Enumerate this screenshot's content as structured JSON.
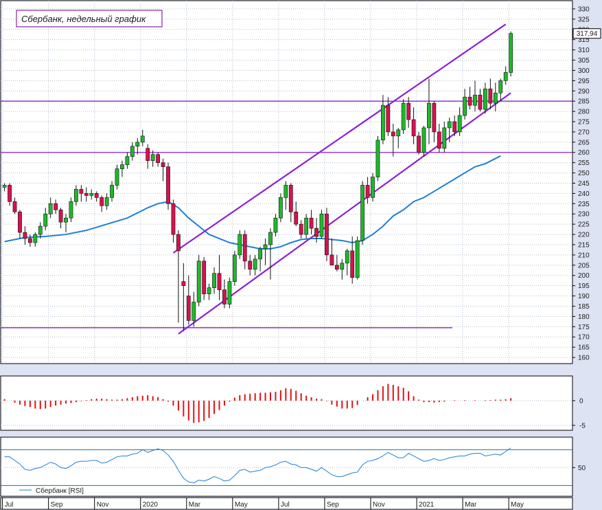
{
  "chart_data": {
    "type": "candlestick",
    "title": "Сбербанк, недельный график",
    "last_price_label": "317,94",
    "price_axis": {
      "ylim": [
        157,
        334
      ],
      "ticks": [
        160,
        165,
        170,
        175,
        180,
        185,
        190,
        195,
        200,
        205,
        210,
        215,
        220,
        225,
        230,
        235,
        240,
        245,
        250,
        255,
        260,
        265,
        270,
        275,
        280,
        285,
        290,
        295,
        300,
        305,
        310,
        315,
        320,
        325,
        330
      ]
    },
    "x_axis_labels": [
      "Jul",
      "Sep",
      "Nov",
      "2020",
      "Mar",
      "May",
      "Jul",
      "Sep",
      "Nov",
      "2021",
      "Mar",
      "May"
    ],
    "x_axis_label_weeks": [
      0,
      9,
      18,
      27,
      36,
      45,
      54,
      63,
      72,
      81,
      90,
      99
    ],
    "grid": true,
    "horizontal_lines": [
      285,
      260,
      174.5
    ],
    "candles": [
      [
        243,
        245,
        241,
        244
      ],
      [
        244,
        245,
        234,
        236
      ],
      [
        236,
        238,
        230,
        231
      ],
      [
        231,
        232,
        218,
        221
      ],
      [
        221,
        224,
        215,
        218
      ],
      [
        218,
        220,
        214,
        216
      ],
      [
        216,
        221,
        214,
        220
      ],
      [
        220,
        226,
        218,
        224
      ],
      [
        224,
        233,
        222,
        230
      ],
      [
        230,
        238,
        228,
        235
      ],
      [
        235,
        237,
        230,
        232
      ],
      [
        232,
        233,
        223,
        226
      ],
      [
        226,
        230,
        221,
        228
      ],
      [
        228,
        238,
        226,
        236
      ],
      [
        236,
        244,
        234,
        242
      ],
      [
        242,
        244,
        236,
        240
      ],
      [
        240,
        243,
        236,
        239
      ],
      [
        239,
        242,
        237,
        240
      ],
      [
        240,
        241,
        236,
        238
      ],
      [
        238,
        239,
        231,
        234
      ],
      [
        234,
        240,
        232,
        238
      ],
      [
        238,
        246,
        236,
        244
      ],
      [
        244,
        254,
        242,
        252
      ],
      [
        252,
        256,
        248,
        254
      ],
      [
        254,
        260,
        252,
        258
      ],
      [
        258,
        265,
        256,
        263
      ],
      [
        263,
        267,
        259,
        265
      ],
      [
        265,
        271,
        263,
        268
      ],
      [
        262,
        264,
        252,
        256
      ],
      [
        256,
        261,
        253,
        259
      ],
      [
        259,
        260,
        253,
        255
      ],
      [
        255,
        257,
        246,
        253
      ],
      [
        253,
        255,
        232,
        235
      ],
      [
        235,
        237,
        216,
        220
      ],
      [
        220,
        222,
        177,
        212
      ],
      [
        197,
        206,
        173,
        195
      ],
      [
        190,
        200,
        176,
        178
      ],
      [
        178,
        192,
        175,
        187
      ],
      [
        187,
        210,
        185,
        207
      ],
      [
        207,
        209,
        188,
        191
      ],
      [
        191,
        196,
        188,
        194
      ],
      [
        194,
        204,
        191,
        201
      ],
      [
        201,
        210,
        188,
        193
      ],
      [
        193,
        198,
        184,
        186
      ],
      [
        186,
        199,
        184,
        197
      ],
      [
        197,
        212,
        195,
        210
      ],
      [
        210,
        222,
        208,
        220
      ],
      [
        220,
        222,
        203,
        207
      ],
      [
        207,
        210,
        200,
        203
      ],
      [
        203,
        210,
        200,
        208
      ],
      [
        208,
        214,
        202,
        213
      ],
      [
        213,
        218,
        205,
        215
      ],
      [
        215,
        223,
        198,
        221
      ],
      [
        221,
        230,
        219,
        228
      ],
      [
        228,
        240,
        226,
        238
      ],
      [
        238,
        246,
        232,
        244
      ],
      [
        244,
        245,
        226,
        231
      ],
      [
        231,
        236,
        224,
        225
      ],
      [
        225,
        227,
        218,
        220
      ],
      [
        220,
        230,
        218,
        228
      ],
      [
        228,
        232,
        220,
        223
      ],
      [
        223,
        228,
        216,
        219
      ],
      [
        219,
        232,
        218,
        230
      ],
      [
        230,
        233,
        207,
        210
      ],
      [
        210,
        218,
        205,
        205
      ],
      [
        205,
        210,
        202,
        203
      ],
      [
        203,
        208,
        198,
        206
      ],
      [
        206,
        213,
        200,
        212
      ],
      [
        212,
        219,
        196,
        199
      ],
      [
        199,
        219,
        198,
        217
      ],
      [
        217,
        246,
        215,
        244
      ],
      [
        244,
        248,
        235,
        238
      ],
      [
        238,
        250,
        236,
        248
      ],
      [
        248,
        268,
        246,
        266
      ],
      [
        266,
        288,
        264,
        283
      ],
      [
        283,
        287,
        268,
        270
      ],
      [
        270,
        274,
        258,
        268
      ],
      [
        268,
        272,
        262,
        271
      ],
      [
        271,
        286,
        269,
        284
      ],
      [
        284,
        287,
        272,
        276
      ],
      [
        276,
        282,
        264,
        268
      ],
      [
        268,
        270,
        259,
        260
      ],
      [
        260,
        273,
        258,
        272
      ],
      [
        272,
        296,
        264,
        284
      ],
      [
        284,
        285,
        265,
        270
      ],
      [
        270,
        274,
        260,
        262
      ],
      [
        262,
        275,
        260,
        272
      ],
      [
        272,
        277,
        265,
        275
      ],
      [
        275,
        278,
        268,
        270
      ],
      [
        270,
        282,
        268,
        278
      ],
      [
        278,
        291,
        276,
        287
      ],
      [
        287,
        292,
        281,
        283
      ],
      [
        283,
        295,
        280,
        288
      ],
      [
        288,
        291,
        280,
        281
      ],
      [
        281,
        294,
        279,
        291
      ],
      [
        291,
        296,
        281,
        284
      ],
      [
        284,
        294,
        280,
        289
      ],
      [
        289,
        296,
        285,
        295
      ],
      [
        295,
        302,
        293,
        299
      ],
      [
        299,
        319,
        297,
        318
      ]
    ],
    "moving_average": [
      [
        0,
        216.5
      ],
      [
        4,
        218.5
      ],
      [
        8,
        219
      ],
      [
        12,
        220
      ],
      [
        16,
        222
      ],
      [
        20,
        225
      ],
      [
        24,
        228
      ],
      [
        28,
        233
      ],
      [
        30,
        235
      ],
      [
        32,
        236
      ],
      [
        34,
        233
      ],
      [
        36,
        228
      ],
      [
        38,
        224
      ],
      [
        40,
        220
      ],
      [
        42,
        218
      ],
      [
        44,
        216
      ],
      [
        46,
        215
      ],
      [
        48,
        214
      ],
      [
        50,
        213
      ],
      [
        52,
        213
      ],
      [
        54,
        214
      ],
      [
        56,
        216
      ],
      [
        58,
        217.5
      ],
      [
        60,
        218
      ],
      [
        62,
        218
      ],
      [
        64,
        217.5
      ],
      [
        66,
        217
      ],
      [
        68,
        216
      ],
      [
        70,
        217
      ],
      [
        72,
        220
      ],
      [
        74,
        224
      ],
      [
        76,
        229
      ],
      [
        78,
        232
      ],
      [
        80,
        236
      ],
      [
        82,
        238
      ],
      [
        84,
        241
      ],
      [
        86,
        244
      ],
      [
        88,
        247
      ],
      [
        90,
        250
      ],
      [
        92,
        253
      ],
      [
        94,
        254.5
      ],
      [
        96,
        257
      ],
      [
        97,
        258.3
      ]
    ],
    "channel_lines": [
      {
        "from": [
          33,
          211
        ],
        "to": [
          98,
          322.5
        ]
      },
      {
        "from": [
          34,
          171.5
        ],
        "to": [
          99,
          289
        ]
      }
    ],
    "macd_histogram": [
      0.3,
      0,
      -0.4,
      -0.8,
      -1.1,
      -1.3,
      -1.6,
      -1.7,
      -1.6,
      -1.3,
      -1,
      -0.8,
      -0.6,
      -0.5,
      -0.3,
      -0.1,
      0.1,
      0.3,
      0.4,
      0.4,
      0.3,
      0.2,
      0.2,
      0.3,
      0.5,
      0.7,
      0.9,
      1,
      1.1,
      0.9,
      0.7,
      0.3,
      -0.2,
      -1,
      -2,
      -3.2,
      -4,
      -4.5,
      -4.4,
      -4.1,
      -3.5,
      -2.7,
      -1.9,
      -1,
      -0.2,
      0.6,
      1.1,
      1.3,
      1.4,
      1.5,
      1.6,
      1.6,
      1.7,
      1.8,
      2.1,
      2.5,
      2.4,
      2,
      1.5,
      1,
      0.7,
      0.4,
      0.3,
      -0.1,
      -0.8,
      -1.2,
      -1.6,
      -1.6,
      -1.5,
      -0.9,
      0,
      0.7,
      1.3,
      2.1,
      2.9,
      3.4,
      3.2,
      2.9,
      2.6,
      1.9,
      0.9,
      0.2,
      -0.3,
      -0.3,
      -0.4,
      -0.3,
      -0.2,
      0,
      0.1,
      0,
      0.1,
      0,
      0.1,
      0,
      0.1,
      0.1,
      0.2,
      0.2,
      0.3,
      0.5
    ],
    "macd_axis": {
      "ylim": [
        -6,
        5
      ],
      "ticks": [
        0,
        -5
      ]
    },
    "rsi_series_name": "Сбербанк [RSI]",
    "rsi": [
      62,
      62,
      58,
      54,
      48,
      47,
      49,
      50,
      53,
      56,
      54,
      50,
      49,
      52,
      56,
      57,
      57,
      58,
      58,
      55,
      56,
      59,
      62,
      63,
      63,
      65,
      66,
      70,
      67,
      69,
      71,
      69,
      64,
      57,
      47,
      38,
      34,
      33,
      36,
      35,
      37,
      40,
      38,
      35,
      36,
      41,
      47,
      48,
      45,
      46,
      47,
      50,
      51,
      53,
      56,
      57,
      54,
      53,
      50,
      50,
      48,
      46,
      50,
      46,
      42,
      40,
      40,
      42,
      44,
      45,
      53,
      57,
      58,
      60,
      63,
      67,
      64,
      61,
      61,
      66,
      63,
      60,
      57,
      58,
      60,
      58,
      59,
      61,
      62,
      63,
      63,
      65,
      66,
      66,
      63,
      64,
      65,
      64,
      68,
      72
    ],
    "rsi_axis": {
      "ylim": [
        18,
        84
      ],
      "ticks": [
        50
      ],
      "levels": [
        70,
        30
      ]
    }
  }
}
